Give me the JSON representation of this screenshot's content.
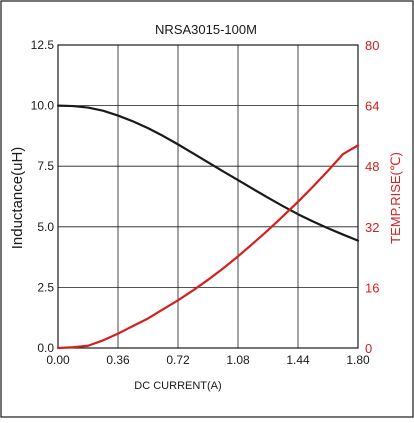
{
  "chart_data": {
    "type": "line",
    "title": "NRSA3015-100M",
    "xlabel": "DC CURRENT(A)",
    "ylabel_left": "Inductance(uH)",
    "ylabel_right": "TEMP.RISE(℃)",
    "xlim": [
      0,
      1.8
    ],
    "ylim_left": [
      0,
      12.5
    ],
    "ylim_right": [
      0,
      80
    ],
    "x_ticks": [
      "0.00",
      "0.36",
      "0.72",
      "1.08",
      "1.44",
      "1.80"
    ],
    "y_left_ticks": [
      "0.0",
      "2.5",
      "5.0",
      "7.5",
      "10.0",
      "12.5"
    ],
    "y_right_ticks": [
      "0",
      "16",
      "32",
      "48",
      "64",
      "80"
    ],
    "grid": true,
    "colors": {
      "inductance": "#1a1a1a",
      "temp_rise": "#d42020",
      "right_axis": "#d42020",
      "grid": "#1a1a1a"
    },
    "series": [
      {
        "axis": "left",
        "x": [
          0,
          0.09,
          0.18,
          0.27,
          0.36,
          0.45,
          0.54,
          0.63,
          0.72,
          0.81,
          0.9,
          0.99,
          1.08,
          1.17,
          1.26,
          1.35,
          1.44,
          1.53,
          1.62,
          1.71,
          1.8
        ],
        "values": [
          10.0,
          9.98,
          9.92,
          9.79,
          9.59,
          9.35,
          9.07,
          8.75,
          8.4,
          8.03,
          7.66,
          7.29,
          6.93,
          6.56,
          6.2,
          5.85,
          5.52,
          5.22,
          4.94,
          4.68,
          4.43
        ]
      },
      {
        "axis": "right",
        "x": [
          0,
          0.09,
          0.18,
          0.27,
          0.36,
          0.45,
          0.54,
          0.63,
          0.72,
          0.81,
          0.9,
          0.99,
          1.08,
          1.17,
          1.26,
          1.35,
          1.44,
          1.53,
          1.62,
          1.71,
          1.8
        ],
        "values": [
          0,
          0.2,
          0.6,
          2.0,
          3.8,
          5.8,
          7.8,
          10.2,
          12.6,
          15.2,
          18.0,
          21.0,
          24.2,
          27.6,
          31.1,
          34.8,
          38.6,
          42.6,
          46.8,
          51.2,
          53.5
        ]
      }
    ]
  }
}
